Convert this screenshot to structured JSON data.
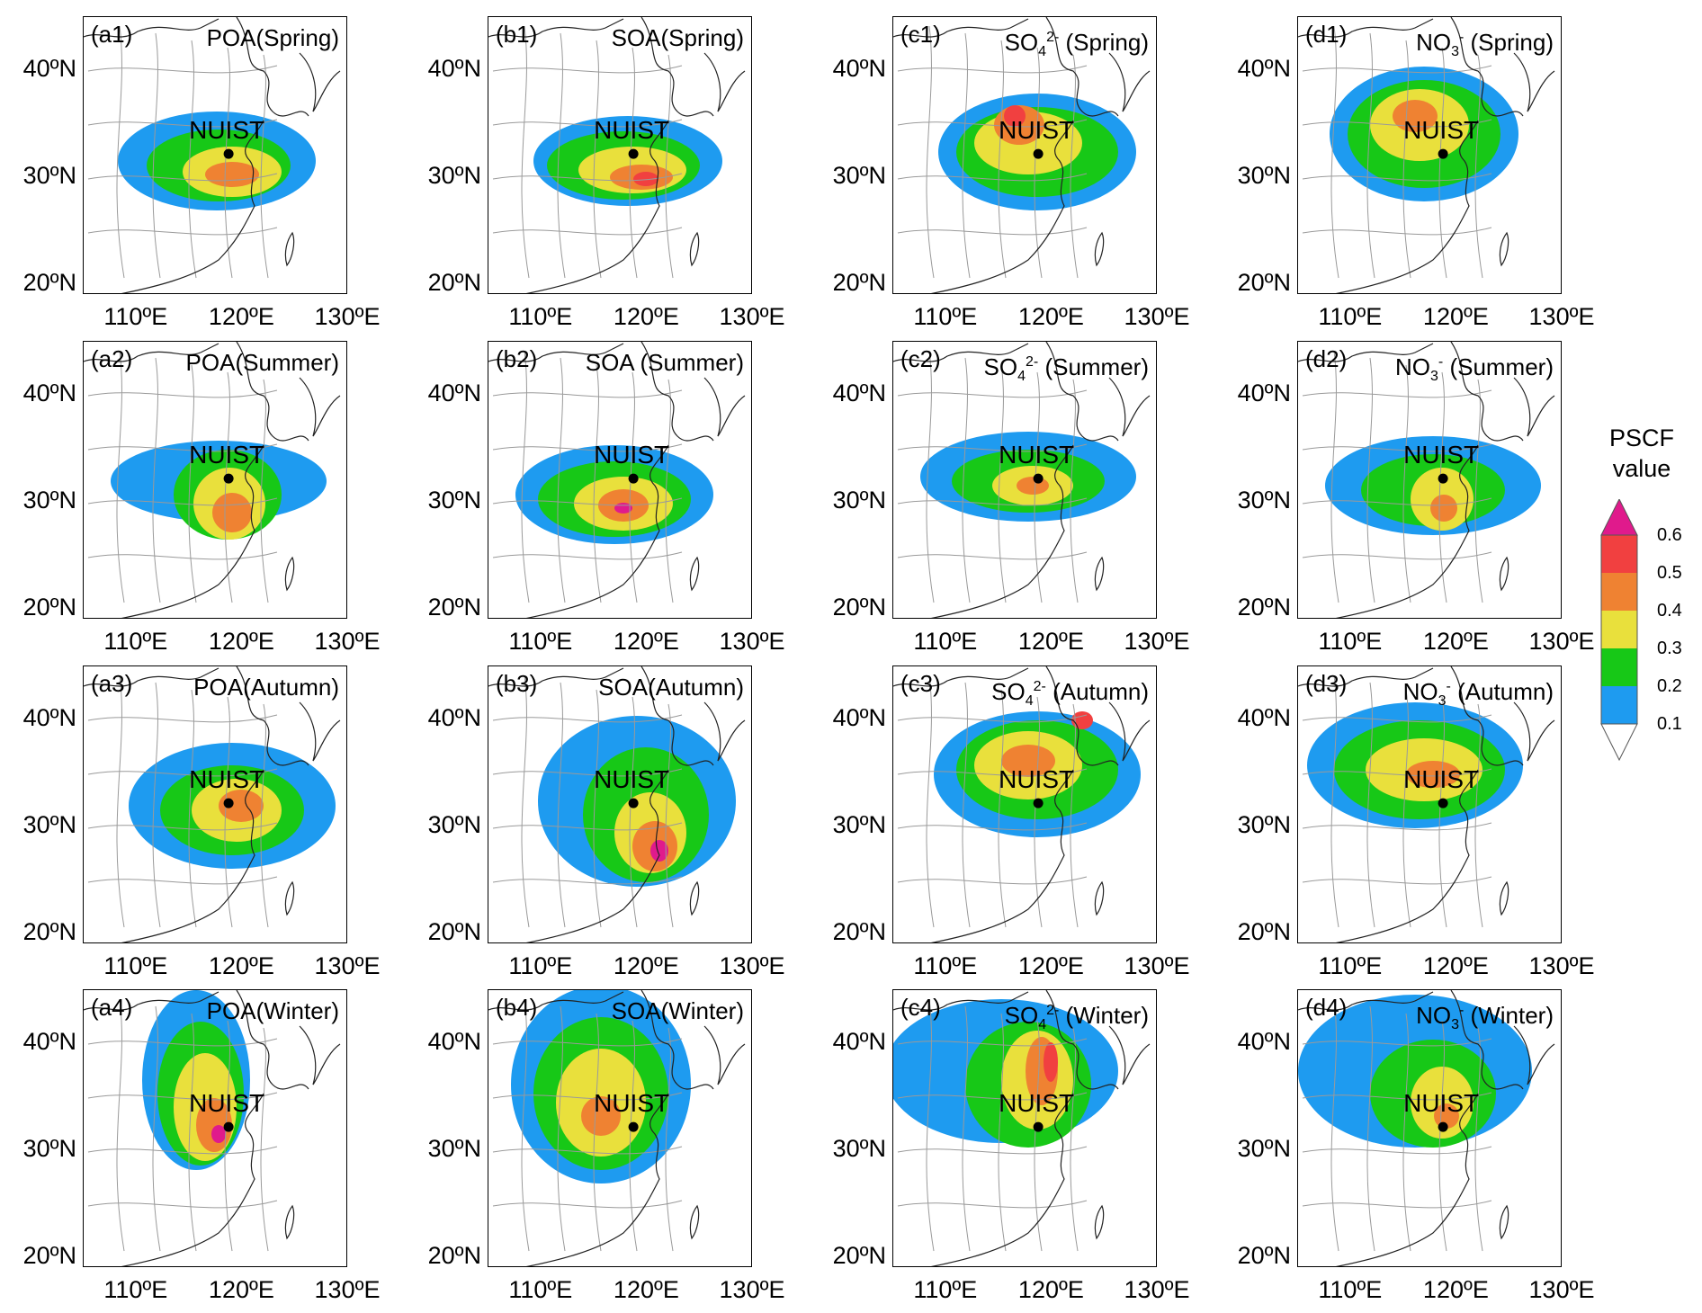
{
  "site": {
    "name": "NUIST"
  },
  "axes": {
    "lat_ticks": [
      "40ºN",
      "30ºN",
      "20ºN"
    ],
    "lon_ticks": [
      "110ºE",
      "120ºE",
      "130ºE"
    ]
  },
  "colorbar": {
    "title_line1": "PSCF",
    "title_line2": "value",
    "ticks": [
      "0.6",
      "0.5",
      "0.4",
      "0.3",
      "0.2",
      "0.1"
    ],
    "colors": [
      "#e01a8c",
      "#f14040",
      "#ef8232",
      "#e9e03c",
      "#17c817",
      "#1e9bf0",
      "#ffffff"
    ],
    "color_names": [
      "magenta",
      "red",
      "orange",
      "yellow",
      "green",
      "blue",
      "white"
    ]
  },
  "colors": {
    "province_border": "#9a9a9a",
    "coast": "#222222",
    "frame": "#000000",
    "site_marker": "#000000"
  },
  "panels": [
    {
      "id": "a1",
      "label": "(a1)",
      "species": "POA",
      "season": "(Spring)",
      "sub": "",
      "sup": ""
    },
    {
      "id": "b1",
      "label": "(b1)",
      "species": "SOA",
      "season": "(Spring)",
      "sub": "",
      "sup": ""
    },
    {
      "id": "c1",
      "label": "(c1)",
      "species": "SO",
      "season": " (Spring)",
      "sub": "4",
      "sup": "2-"
    },
    {
      "id": "d1",
      "label": "(d1)",
      "species": "NO",
      "season": " (Spring)",
      "sub": "3",
      "sup": "-"
    },
    {
      "id": "a2",
      "label": "(a2)",
      "species": "POA",
      "season": "(Summer)",
      "sub": "",
      "sup": ""
    },
    {
      "id": "b2",
      "label": "(b2)",
      "species": "SOA",
      "season": " (Summer)",
      "sub": "",
      "sup": ""
    },
    {
      "id": "c2",
      "label": "(c2)",
      "species": "SO",
      "season": " (Summer)",
      "sub": "4",
      "sup": "2-"
    },
    {
      "id": "d2",
      "label": "(d2)",
      "species": "NO",
      "season": " (Summer)",
      "sub": "3",
      "sup": "-"
    },
    {
      "id": "a3",
      "label": "(a3)",
      "species": "POA",
      "season": "(Autumn)",
      "sub": "",
      "sup": ""
    },
    {
      "id": "b3",
      "label": "(b3)",
      "species": "SOA",
      "season": "(Autumn)",
      "sub": "",
      "sup": ""
    },
    {
      "id": "c3",
      "label": "(c3)",
      "species": "SO",
      "season": " (Autumn)",
      "sub": "4",
      "sup": "2-"
    },
    {
      "id": "d3",
      "label": "(d3)",
      "species": "NO",
      "season": " (Autumn)",
      "sub": "3",
      "sup": "-"
    },
    {
      "id": "a4",
      "label": "(a4)",
      "species": "POA",
      "season": "(Winter)",
      "sub": "",
      "sup": ""
    },
    {
      "id": "b4",
      "label": "(b4)",
      "species": "SOA",
      "season": "(Winter)",
      "sub": "",
      "sup": ""
    },
    {
      "id": "c4",
      "label": "(c4)",
      "species": "SO",
      "season": " (Winter)",
      "sub": "4",
      "sup": "2-"
    },
    {
      "id": "d4",
      "label": "(d4)",
      "species": "NO",
      "season": " (Winter)",
      "sub": "3",
      "sup": "-"
    }
  ]
}
